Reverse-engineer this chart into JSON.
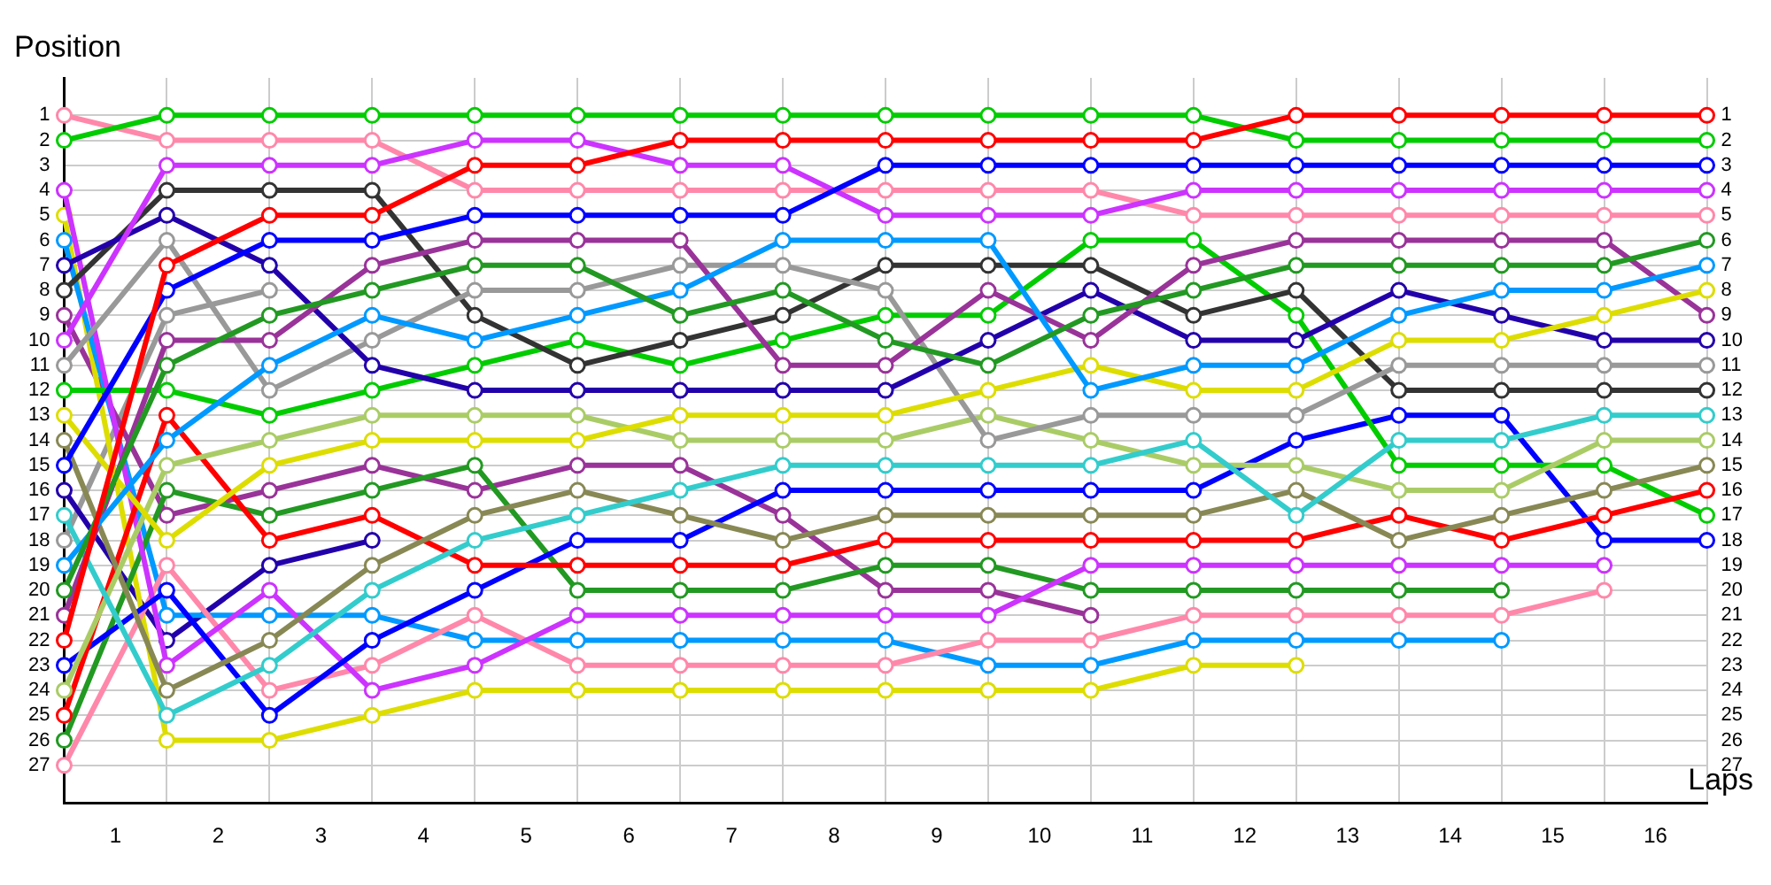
{
  "chart_data": {
    "type": "line",
    "xlabel": "Laps",
    "ylabel": "Position",
    "x": [
      0,
      1,
      2,
      3,
      4,
      5,
      6,
      7,
      8,
      9,
      10,
      11,
      12,
      13,
      14,
      15,
      16
    ],
    "xlim": [
      0,
      16
    ],
    "xticks": [
      {
        "value": 0,
        "label": null
      },
      {
        "value": 0.5,
        "label": "1"
      },
      {
        "value": 1,
        "label": null
      },
      {
        "value": 1.5,
        "label": "2"
      },
      {
        "value": 2,
        "label": null
      },
      {
        "value": 2.5,
        "label": "3"
      },
      {
        "value": 3,
        "label": null
      },
      {
        "value": 3.5,
        "label": "4"
      },
      {
        "value": 4,
        "label": null
      },
      {
        "value": 4.5,
        "label": "5"
      },
      {
        "value": 5,
        "label": null
      },
      {
        "value": 5.5,
        "label": "6"
      },
      {
        "value": 6,
        "label": null
      },
      {
        "value": 6.5,
        "label": "7"
      },
      {
        "value": 7,
        "label": null
      },
      {
        "value": 7.5,
        "label": "8"
      },
      {
        "value": 8,
        "label": null
      },
      {
        "value": 8.5,
        "label": "9"
      },
      {
        "value": 9,
        "label": null
      },
      {
        "value": 9.5,
        "label": "10"
      },
      {
        "value": 10,
        "label": null
      },
      {
        "value": 10.5,
        "label": "11"
      },
      {
        "value": 11,
        "label": null
      },
      {
        "value": 11.5,
        "label": "12"
      },
      {
        "value": 12,
        "label": null
      },
      {
        "value": 12.5,
        "label": "13"
      },
      {
        "value": 13,
        "label": null
      },
      {
        "value": 13.5,
        "label": "14"
      },
      {
        "value": 14,
        "label": null
      },
      {
        "value": 14.5,
        "label": "15"
      },
      {
        "value": 15,
        "label": null
      },
      {
        "value": 15.5,
        "label": "16"
      },
      {
        "value": 16,
        "label": null
      }
    ],
    "ylim": [
      28.5,
      -0.5
    ],
    "yticks": [
      1,
      2,
      3,
      4,
      5,
      6,
      7,
      8,
      9,
      10,
      11,
      12,
      13,
      14,
      15,
      16,
      17,
      18,
      19,
      20,
      21,
      22,
      23,
      24,
      25,
      26,
      27
    ],
    "y2lim": [
      28.5,
      -0.5
    ],
    "y2ticks": [
      1,
      2,
      3,
      4,
      5,
      6,
      7,
      8,
      9,
      10,
      11,
      12,
      13,
      14,
      15,
      16,
      17,
      18,
      19,
      20,
      21,
      22,
      23,
      24,
      25,
      26,
      27
    ],
    "grid": true,
    "legend": false,
    "marker": "circle",
    "line_style": "solid",
    "series": [
      {
        "color": "#ff0000",
        "values": [
          22,
          7,
          5,
          5,
          3,
          3,
          2,
          2,
          2,
          2,
          2,
          2,
          1,
          1,
          1,
          1,
          1
        ]
      },
      {
        "color": "#00cc00",
        "values": [
          2,
          1,
          1,
          1,
          1,
          1,
          1,
          1,
          1,
          1,
          1,
          1,
          2,
          2,
          2,
          2,
          2
        ]
      },
      {
        "color": "#0000ff",
        "values": [
          15,
          8,
          6,
          6,
          5,
          5,
          5,
          5,
          3,
          3,
          3,
          3,
          3,
          3,
          3,
          3,
          3
        ]
      },
      {
        "color": "#cc33ff",
        "values": [
          10,
          3,
          3,
          3,
          2,
          2,
          3,
          3,
          5,
          5,
          5,
          4,
          4,
          4,
          4,
          4,
          4
        ]
      },
      {
        "color": "#ff88aa",
        "values": [
          1,
          2,
          2,
          2,
          4,
          4,
          4,
          4,
          4,
          4,
          4,
          5,
          5,
          5,
          5,
          5,
          5
        ]
      },
      {
        "color": "#229922",
        "values": [
          20,
          11,
          9,
          8,
          7,
          7,
          9,
          8,
          10,
          11,
          9,
          8,
          7,
          7,
          7,
          7,
          6
        ]
      },
      {
        "color": "#0099ff",
        "values": [
          19,
          14,
          11,
          9,
          10,
          9,
          8,
          6,
          6,
          6,
          12,
          11,
          11,
          9,
          8,
          8,
          7
        ]
      },
      {
        "color": "#dddd00",
        "values": [
          13,
          18,
          15,
          14,
          14,
          14,
          13,
          13,
          13,
          12,
          11,
          12,
          12,
          10,
          10,
          9,
          8
        ]
      },
      {
        "color": "#993399",
        "values": [
          21,
          10,
          10,
          7,
          6,
          6,
          6,
          11,
          11,
          8,
          10,
          7,
          6,
          6,
          6,
          6,
          9
        ]
      },
      {
        "color": "#2200aa",
        "values": [
          7,
          5,
          7,
          11,
          12,
          12,
          12,
          12,
          12,
          10,
          8,
          10,
          10,
          8,
          9,
          10,
          10
        ]
      },
      {
        "color": "#999999",
        "values": [
          11,
          6,
          12,
          10,
          8,
          8,
          7,
          7,
          8,
          14,
          13,
          13,
          13,
          11,
          11,
          11,
          11
        ]
      },
      {
        "color": "#333333",
        "values": [
          8,
          4,
          4,
          4,
          9,
          11,
          10,
          9,
          7,
          7,
          7,
          9,
          8,
          12,
          12,
          12,
          12
        ]
      },
      {
        "color": "#33cccc",
        "values": [
          17,
          25,
          23,
          20,
          18,
          17,
          16,
          15,
          15,
          15,
          15,
          14,
          17,
          14,
          14,
          13,
          13
        ]
      },
      {
        "color": "#aacc66",
        "values": [
          24,
          15,
          14,
          13,
          13,
          13,
          14,
          14,
          14,
          13,
          14,
          15,
          15,
          16,
          16,
          14,
          14
        ]
      },
      {
        "color": "#888855",
        "values": [
          14,
          24,
          22,
          19,
          17,
          16,
          17,
          18,
          17,
          17,
          17,
          17,
          16,
          18,
          17,
          16,
          15
        ]
      },
      {
        "color": "#ff0000",
        "values": [
          25,
          13,
          18,
          17,
          19,
          19,
          19,
          19,
          18,
          18,
          18,
          18,
          18,
          17,
          18,
          17,
          16
        ]
      },
      {
        "color": "#00cc00",
        "values": [
          12,
          12,
          13,
          12,
          11,
          10,
          11,
          10,
          9,
          9,
          6,
          6,
          9,
          15,
          15,
          15,
          17
        ]
      },
      {
        "color": "#0000ff",
        "values": [
          23,
          20,
          25,
          22,
          20,
          18,
          18,
          16,
          16,
          16,
          16,
          16,
          14,
          13,
          13,
          18,
          18
        ]
      },
      {
        "color": "#cc33ff",
        "values": [
          4,
          23,
          20,
          24,
          23,
          21,
          21,
          21,
          21,
          21,
          19,
          19,
          19,
          19,
          19,
          19,
          null
        ]
      },
      {
        "color": "#ff88aa",
        "values": [
          27,
          19,
          24,
          23,
          21,
          23,
          23,
          23,
          23,
          22,
          22,
          21,
          21,
          21,
          21,
          20,
          null
        ]
      },
      {
        "color": "#229922",
        "values": [
          26,
          16,
          17,
          16,
          15,
          20,
          20,
          20,
          19,
          19,
          20,
          20,
          20,
          20,
          20,
          null,
          null
        ]
      },
      {
        "color": "#0099ff",
        "values": [
          6,
          21,
          21,
          21,
          22,
          22,
          22,
          22,
          22,
          23,
          23,
          22,
          22,
          22,
          22,
          null,
          null
        ]
      },
      {
        "color": "#dddd00",
        "values": [
          5,
          26,
          26,
          25,
          24,
          24,
          24,
          24,
          24,
          24,
          24,
          23,
          23,
          null,
          null,
          null,
          null
        ]
      },
      {
        "color": "#993399",
        "values": [
          9,
          17,
          16,
          15,
          16,
          15,
          15,
          17,
          20,
          20,
          21,
          null,
          null,
          null,
          null,
          null,
          null
        ]
      },
      {
        "color": "#2200aa",
        "values": [
          16,
          22,
          19,
          18,
          null,
          null,
          null,
          null,
          null,
          null,
          null,
          null,
          null,
          null,
          null,
          null,
          null
        ]
      },
      {
        "color": "#999999",
        "values": [
          18,
          9,
          8,
          null,
          null,
          null,
          null,
          null,
          null,
          null,
          null,
          null,
          null,
          null,
          null,
          null,
          null
        ]
      }
    ]
  }
}
